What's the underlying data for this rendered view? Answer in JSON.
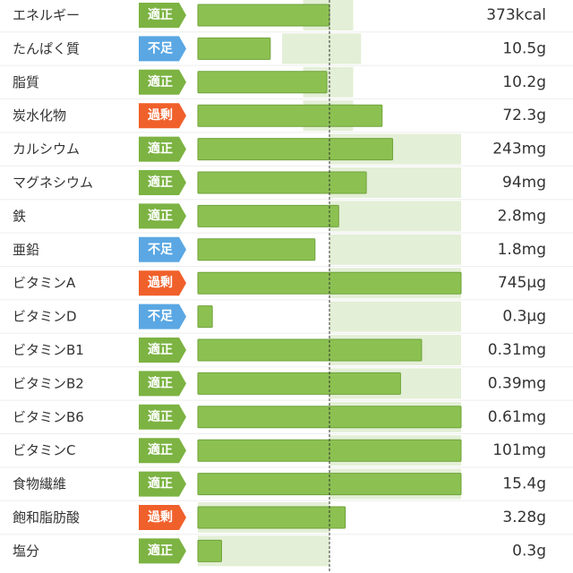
{
  "chart_data": {
    "type": "bar",
    "categories": [
      "エネルギー",
      "たんぱく質",
      "脂質",
      "炭水化物",
      "カルシウム",
      "マグネシウム",
      "鉄",
      "亜鉛",
      "ビタミンA",
      "ビタミンD",
      "ビタミンB1",
      "ビタミンB2",
      "ビタミンB6",
      "ビタミンC",
      "食物繊維",
      "飽和脂肪酸",
      "塩分"
    ],
    "status": [
      "適正",
      "不足",
      "適正",
      "過剰",
      "適正",
      "適正",
      "適正",
      "不足",
      "過剰",
      "不足",
      "適正",
      "適正",
      "適正",
      "適正",
      "適正",
      "過剰",
      "適正"
    ],
    "status_colors": [
      "#7cb342",
      "#5aa7e3",
      "#7cb342",
      "#f0602b",
      "#7cb342",
      "#7cb342",
      "#7cb342",
      "#5aa7e3",
      "#f0602b",
      "#5aa7e3",
      "#7cb342",
      "#7cb342",
      "#7cb342",
      "#7cb342",
      "#7cb342",
      "#f0602b",
      "#7cb342"
    ],
    "amounts": [
      "373kcal",
      "10.5g",
      "10.2g",
      "72.3g",
      "243mg",
      "94mg",
      "2.8mg",
      "1.8mg",
      "745μg",
      "0.3μg",
      "0.31mg",
      "0.39mg",
      "0.61mg",
      "101mg",
      "15.4g",
      "3.28g",
      "0.3g"
    ],
    "values": [
      100,
      55,
      98,
      140,
      148,
      128,
      107,
      89,
      200,
      11,
      170,
      154,
      200,
      200,
      200,
      112,
      18
    ],
    "ranges": [
      [
        80,
        118
      ],
      [
        64,
        124
      ],
      [
        80,
        118
      ],
      [
        80,
        118
      ],
      [
        100,
        200
      ],
      [
        100,
        200
      ],
      [
        100,
        200
      ],
      [
        100,
        200
      ],
      [
        100,
        200
      ],
      [
        100,
        200
      ],
      [
        100,
        200
      ],
      [
        100,
        200
      ],
      [
        100,
        200
      ],
      [
        100,
        200
      ],
      [
        100,
        200
      ],
      [
        0,
        100
      ],
      [
        0,
        100
      ]
    ],
    "xlim": [
      0,
      200
    ],
    "reference": 100,
    "color": "#8cc152",
    "range_color": "#e3efd6"
  }
}
